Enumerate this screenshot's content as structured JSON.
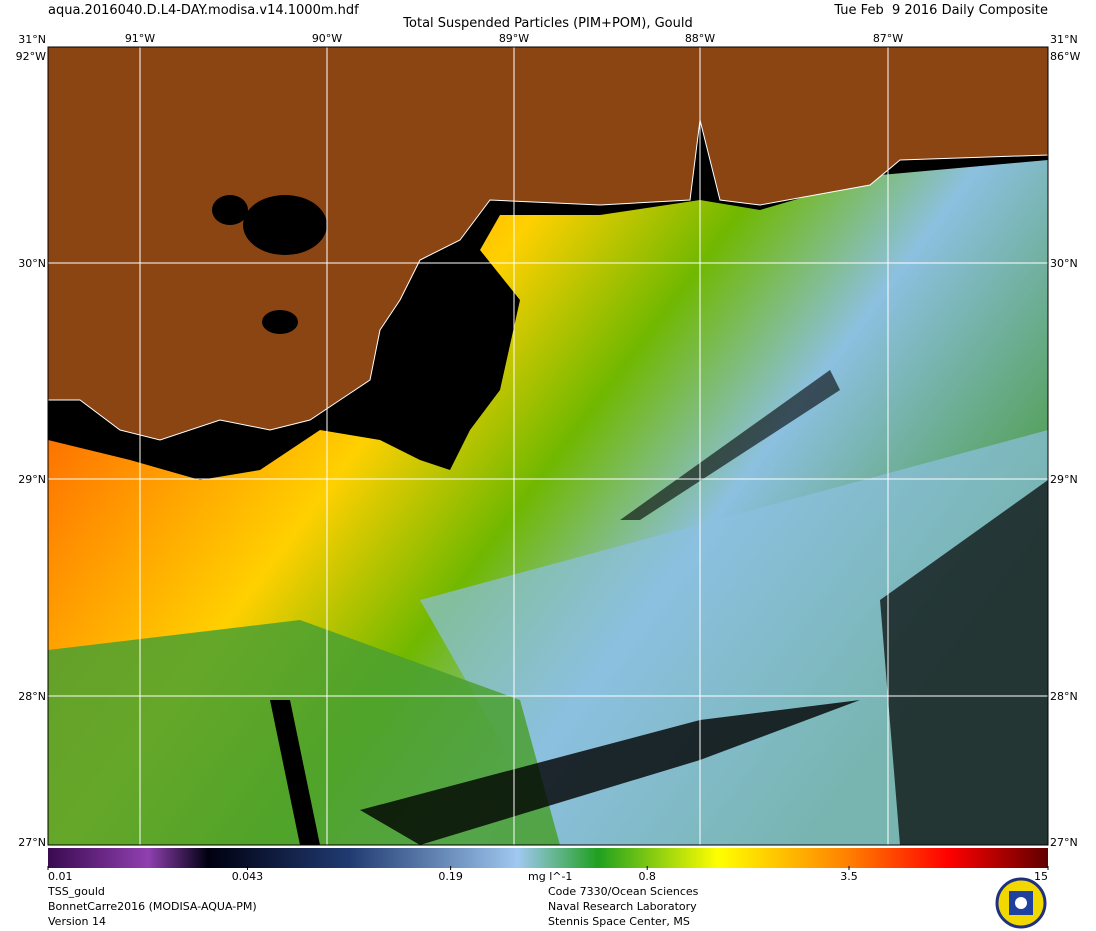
{
  "header": {
    "file": "aqua.2016040.D.L4-DAY.modisa.v14.1000m.hdf",
    "title": "Total Suspended Particles (PIM+POM), Gould",
    "date": "Tue Feb  9 2016 Daily Composite"
  },
  "map": {
    "lon_labels": [
      "91°W",
      "90°W",
      "89°W",
      "88°W",
      "87°W"
    ],
    "lat_labels": [
      "31°N",
      "30°N",
      "29°N",
      "28°N"
    ],
    "corner_labels": [
      "92°W",
      "86°W",
      "27°N"
    ]
  },
  "colorbar": {
    "ticks": [
      0.01,
      0.043,
      0.19,
      0.8,
      3.5,
      15
    ],
    "unit": "mg l^-1"
  },
  "footer": {
    "left": [
      "TSS_gould",
      "BonnetCarre2016 (MODISA-AQUA-PM)",
      "Version 14"
    ],
    "right": [
      "Code 7330/Ocean Sciences",
      "Naval Research Laboratory",
      "Stennis Space Center, MS"
    ]
  }
}
